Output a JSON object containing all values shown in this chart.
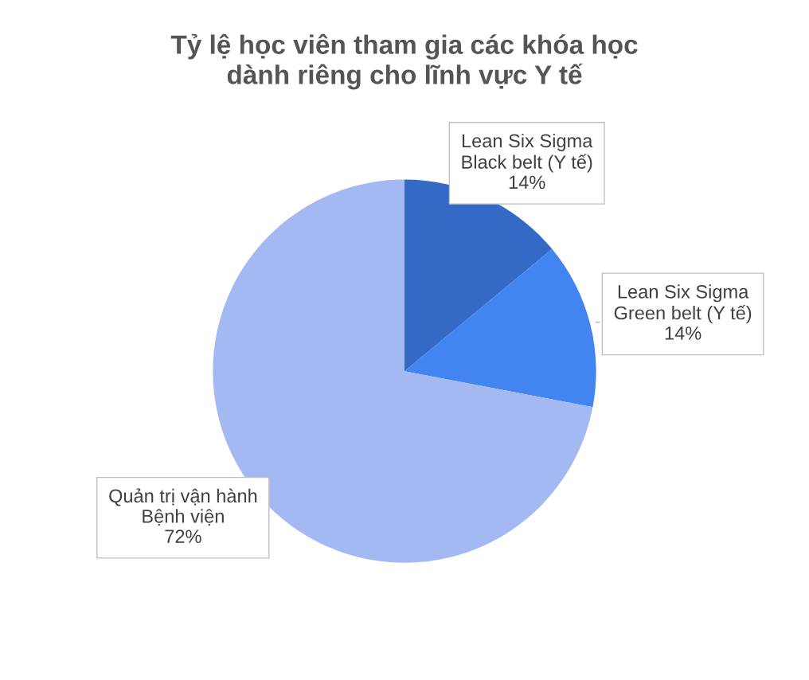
{
  "chart_data": {
    "type": "pie",
    "title": "Tỷ lệ học viên tham gia các khóa học\ndành riêng cho lĩnh vực Y tế",
    "categories": [
      "Lean Six Sigma\nBlack belt (Y tế)",
      "Lean Six Sigma\nGreen belt (Y tế)",
      "Quản trị vận hành\nBệnh viện"
    ],
    "values": [
      14,
      14,
      72
    ],
    "value_labels": [
      "14%",
      "14%",
      "72%"
    ],
    "colors": [
      "#3469c6",
      "#4285f0",
      "#a4b8f2"
    ],
    "legend": false
  }
}
